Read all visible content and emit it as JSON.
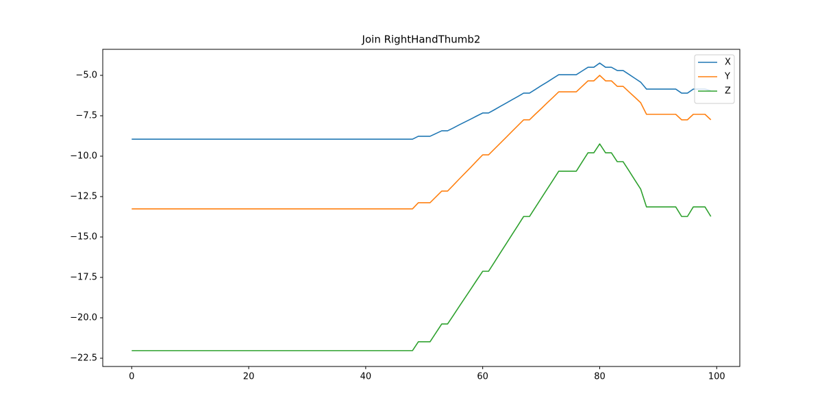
{
  "chart_data": {
    "type": "line",
    "title": "Join RightHandThumb2",
    "x": [
      0,
      1,
      2,
      3,
      4,
      5,
      6,
      7,
      8,
      9,
      10,
      11,
      12,
      13,
      14,
      15,
      16,
      17,
      18,
      19,
      20,
      21,
      22,
      23,
      24,
      25,
      26,
      27,
      28,
      29,
      30,
      31,
      32,
      33,
      34,
      35,
      36,
      37,
      38,
      39,
      40,
      41,
      42,
      43,
      44,
      45,
      46,
      47,
      48,
      49,
      50,
      51,
      52,
      53,
      54,
      55,
      56,
      57,
      58,
      59,
      60,
      61,
      62,
      63,
      64,
      65,
      66,
      67,
      68,
      69,
      70,
      71,
      72,
      73,
      74,
      75,
      76,
      77,
      78,
      79,
      80,
      81,
      82,
      83,
      84,
      85,
      86,
      87,
      88,
      89,
      90,
      91,
      92,
      93,
      94,
      95,
      96,
      97,
      98,
      99
    ],
    "series": [
      {
        "name": "X",
        "color": "#1f77b4",
        "values": [
          -8.95,
          -8.95,
          -8.95,
          -8.95,
          -8.95,
          -8.95,
          -8.95,
          -8.95,
          -8.95,
          -8.95,
          -8.95,
          -8.95,
          -8.95,
          -8.95,
          -8.95,
          -8.95,
          -8.95,
          -8.95,
          -8.95,
          -8.95,
          -8.95,
          -8.95,
          -8.95,
          -8.95,
          -8.95,
          -8.95,
          -8.95,
          -8.95,
          -8.95,
          -8.95,
          -8.95,
          -8.95,
          -8.95,
          -8.95,
          -8.95,
          -8.95,
          -8.95,
          -8.95,
          -8.95,
          -8.95,
          -8.95,
          -8.95,
          -8.95,
          -8.95,
          -8.95,
          -8.95,
          -8.95,
          -8.95,
          -8.95,
          -8.77,
          -8.77,
          -8.77,
          -8.6,
          -8.43,
          -8.43,
          -8.25,
          -8.06,
          -7.88,
          -7.7,
          -7.51,
          -7.33,
          -7.33,
          -7.13,
          -6.92,
          -6.72,
          -6.51,
          -6.31,
          -6.1,
          -6.1,
          -5.87,
          -5.64,
          -5.42,
          -5.19,
          -4.96,
          -4.96,
          -4.96,
          -4.96,
          -4.73,
          -4.5,
          -4.5,
          -4.24,
          -4.5,
          -4.5,
          -4.7,
          -4.7,
          -4.94,
          -5.18,
          -5.42,
          -5.85,
          -5.85,
          -5.85,
          -5.85,
          -5.85,
          -5.85,
          -6.1,
          -6.1,
          -5.85,
          -5.85,
          -5.85,
          -5.95
        ]
      },
      {
        "name": "Y",
        "color": "#ff7f0e",
        "values": [
          -13.26,
          -13.26,
          -13.26,
          -13.26,
          -13.26,
          -13.26,
          -13.26,
          -13.26,
          -13.26,
          -13.26,
          -13.26,
          -13.26,
          -13.26,
          -13.26,
          -13.26,
          -13.26,
          -13.26,
          -13.26,
          -13.26,
          -13.26,
          -13.26,
          -13.26,
          -13.26,
          -13.26,
          -13.26,
          -13.26,
          -13.26,
          -13.26,
          -13.26,
          -13.26,
          -13.26,
          -13.26,
          -13.26,
          -13.26,
          -13.26,
          -13.26,
          -13.26,
          -13.26,
          -13.26,
          -13.26,
          -13.26,
          -13.26,
          -13.26,
          -13.26,
          -13.26,
          -13.26,
          -13.26,
          -13.26,
          -13.26,
          -12.88,
          -12.88,
          -12.88,
          -12.52,
          -12.16,
          -12.16,
          -11.79,
          -11.41,
          -11.04,
          -10.67,
          -10.29,
          -9.92,
          -9.92,
          -9.56,
          -9.2,
          -8.84,
          -8.47,
          -8.11,
          -7.75,
          -7.75,
          -7.4,
          -7.06,
          -6.71,
          -6.37,
          -6.02,
          -6.02,
          -6.02,
          -6.02,
          -5.68,
          -5.34,
          -5.34,
          -5.0,
          -5.34,
          -5.34,
          -5.68,
          -5.68,
          -6.02,
          -6.35,
          -6.69,
          -7.41,
          -7.41,
          -7.41,
          -7.41,
          -7.41,
          -7.41,
          -7.75,
          -7.75,
          -7.41,
          -7.41,
          -7.41,
          -7.75
        ]
      },
      {
        "name": "Z",
        "color": "#2ca02c",
        "values": [
          -22.03,
          -22.03,
          -22.03,
          -22.03,
          -22.03,
          -22.03,
          -22.03,
          -22.03,
          -22.03,
          -22.03,
          -22.03,
          -22.03,
          -22.03,
          -22.03,
          -22.03,
          -22.03,
          -22.03,
          -22.03,
          -22.03,
          -22.03,
          -22.03,
          -22.03,
          -22.03,
          -22.03,
          -22.03,
          -22.03,
          -22.03,
          -22.03,
          -22.03,
          -22.03,
          -22.03,
          -22.03,
          -22.03,
          -22.03,
          -22.03,
          -22.03,
          -22.03,
          -22.03,
          -22.03,
          -22.03,
          -22.03,
          -22.03,
          -22.03,
          -22.03,
          -22.03,
          -22.03,
          -22.03,
          -22.03,
          -22.03,
          -21.48,
          -21.48,
          -21.48,
          -20.93,
          -20.38,
          -20.38,
          -19.84,
          -19.29,
          -18.75,
          -18.21,
          -17.66,
          -17.12,
          -17.12,
          -16.56,
          -15.99,
          -15.43,
          -14.86,
          -14.3,
          -13.73,
          -13.73,
          -13.17,
          -12.61,
          -12.05,
          -11.49,
          -10.93,
          -10.93,
          -10.93,
          -10.93,
          -10.36,
          -9.79,
          -9.79,
          -9.24,
          -9.79,
          -9.79,
          -10.34,
          -10.34,
          -10.9,
          -11.47,
          -12.03,
          -13.14,
          -13.14,
          -13.14,
          -13.14,
          -13.14,
          -13.14,
          -13.73,
          -13.73,
          -13.14,
          -13.14,
          -13.14,
          -13.73
        ]
      }
    ],
    "xlim": [
      -4.95,
      103.95
    ],
    "xticks": [
      0,
      20,
      40,
      60,
      80,
      100
    ],
    "ylim": [
      -23.01,
      -3.39
    ],
    "yticks": [
      {
        "value": -22.5,
        "label": "−22.5"
      },
      {
        "value": -20,
        "label": "−20.0"
      },
      {
        "value": -17.5,
        "label": "−17.5"
      },
      {
        "value": -15,
        "label": "−15.0"
      },
      {
        "value": -12.5,
        "label": "−12.5"
      },
      {
        "value": -10,
        "label": "−10.0"
      },
      {
        "value": -7.5,
        "label": "−7.5"
      },
      {
        "value": -5,
        "label": "−5.0"
      }
    ],
    "grid": false,
    "legend": "upper right"
  }
}
